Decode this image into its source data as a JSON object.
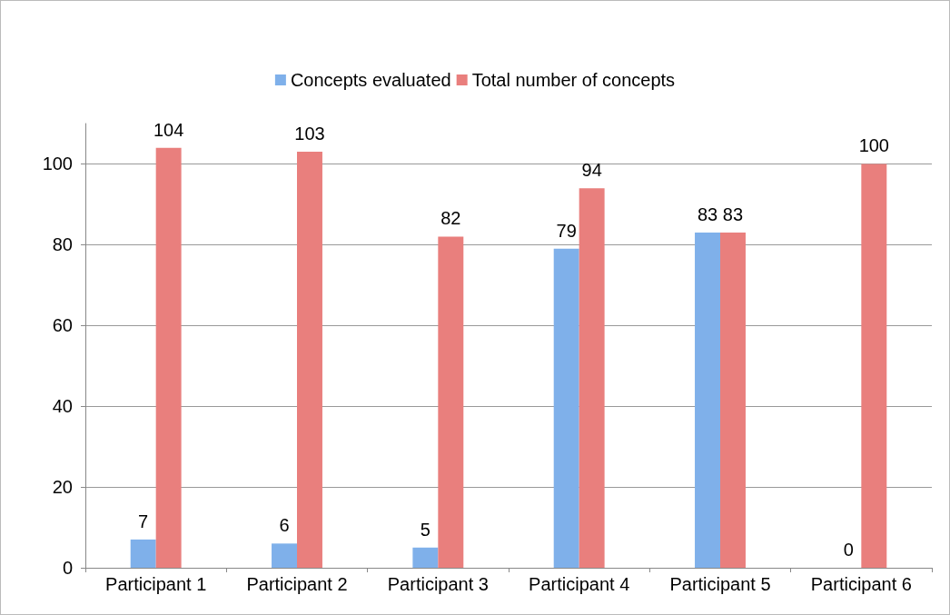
{
  "chart_data": {
    "type": "bar",
    "categories": [
      "Participant 1",
      "Participant 2",
      "Participant 3",
      "Participant 4",
      "Participant 5",
      "Participant 6"
    ],
    "series": [
      {
        "name": "Concepts evaluated",
        "color": "#7fb0ea",
        "values": [
          7,
          6,
          5,
          79,
          83,
          0
        ]
      },
      {
        "name": "Total number of concepts",
        "color": "#e97f7d",
        "values": [
          104,
          103,
          82,
          94,
          83,
          100
        ]
      }
    ],
    "ylim": [
      0,
      110
    ],
    "yticks": [
      0,
      20,
      40,
      60,
      80,
      100
    ],
    "grid": "y",
    "legend": "top",
    "data_labels": true
  }
}
